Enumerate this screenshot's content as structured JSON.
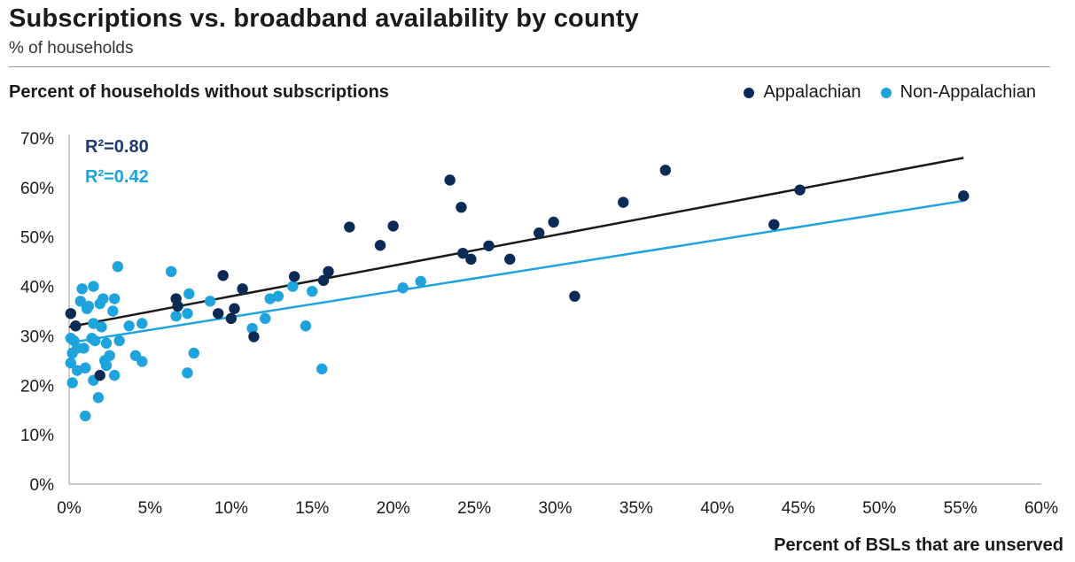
{
  "title": "Subscriptions vs. broadband availability by county",
  "subtitle": "% of households",
  "chart_data": {
    "type": "scatter",
    "title": "Subscriptions vs. broadband availability by county",
    "subtitle": "% of households",
    "ylabel": "Percent of households without subscriptions",
    "xlabel": "Percent of BSLs that are unserved",
    "xlim": [
      0,
      60
    ],
    "ylim": [
      0,
      70
    ],
    "x_ticks": [
      0,
      5,
      10,
      15,
      20,
      25,
      30,
      35,
      40,
      45,
      50,
      55,
      60
    ],
    "y_ticks": [
      0,
      10,
      20,
      30,
      40,
      50,
      60,
      70
    ],
    "x_tick_labels": [
      "0%",
      "5%",
      "10%",
      "15%",
      "20%",
      "25%",
      "30%",
      "35%",
      "40%",
      "45%",
      "50%",
      "55%",
      "60%"
    ],
    "y_tick_labels": [
      "0%",
      "10%",
      "20%",
      "30%",
      "40%",
      "50%",
      "60%",
      "70%"
    ],
    "grid": false,
    "legend_position": "top-right",
    "series": [
      {
        "name": "Appalachian",
        "color": "#0b2a55",
        "points": [
          [
            0.1,
            34.5
          ],
          [
            0.4,
            32
          ],
          [
            1.9,
            22
          ],
          [
            6.6,
            37.5
          ],
          [
            6.7,
            36
          ],
          [
            9.2,
            34.5
          ],
          [
            9.5,
            42.2
          ],
          [
            10.0,
            33.5
          ],
          [
            10.2,
            35.5
          ],
          [
            10.7,
            39.5
          ],
          [
            11.4,
            29.8
          ],
          [
            13.9,
            42
          ],
          [
            15.7,
            41.2
          ],
          [
            16.0,
            43
          ],
          [
            17.3,
            52
          ],
          [
            19.2,
            48.3
          ],
          [
            20.0,
            52.2
          ],
          [
            23.5,
            61.5
          ],
          [
            24.2,
            56
          ],
          [
            24.3,
            46.7
          ],
          [
            24.8,
            45.5
          ],
          [
            25.9,
            48.2
          ],
          [
            27.2,
            45.5
          ],
          [
            29.0,
            50.8
          ],
          [
            29.9,
            53
          ],
          [
            31.2,
            38
          ],
          [
            34.2,
            57
          ],
          [
            36.8,
            63.5
          ],
          [
            43.5,
            52.5
          ],
          [
            45.1,
            59.5
          ],
          [
            55.2,
            58.3
          ]
        ],
        "trendline": {
          "x": [
            0,
            55.2
          ],
          "y": [
            31.8,
            66
          ],
          "r2": "R²=0.80",
          "color": "#1a1a1a"
        }
      },
      {
        "name": "Non-Appalachian",
        "color": "#1ea3dc",
        "points": [
          [
            0.1,
            29.5
          ],
          [
            0.1,
            24.5
          ],
          [
            0.2,
            20.5
          ],
          [
            0.2,
            26.5
          ],
          [
            0.3,
            29
          ],
          [
            0.5,
            27.5
          ],
          [
            0.5,
            23
          ],
          [
            0.7,
            37
          ],
          [
            0.8,
            39.5
          ],
          [
            0.9,
            27.5
          ],
          [
            1.0,
            23.5
          ],
          [
            1.0,
            13.8
          ],
          [
            1.1,
            35.5
          ],
          [
            1.2,
            36
          ],
          [
            1.4,
            29.5
          ],
          [
            1.5,
            21
          ],
          [
            1.5,
            32.5
          ],
          [
            1.5,
            40
          ],
          [
            1.6,
            29
          ],
          [
            1.8,
            17.5
          ],
          [
            1.9,
            36.5
          ],
          [
            2.0,
            31.8
          ],
          [
            2.1,
            37.5
          ],
          [
            2.2,
            25
          ],
          [
            2.3,
            24
          ],
          [
            2.3,
            28.5
          ],
          [
            2.5,
            26
          ],
          [
            2.7,
            35
          ],
          [
            2.8,
            37.5
          ],
          [
            2.8,
            22
          ],
          [
            3.0,
            44
          ],
          [
            3.1,
            29
          ],
          [
            3.7,
            32
          ],
          [
            4.1,
            26
          ],
          [
            4.5,
            24.8
          ],
          [
            4.5,
            32.5
          ],
          [
            6.3,
            43
          ],
          [
            6.6,
            34
          ],
          [
            7.3,
            34.5
          ],
          [
            7.3,
            22.5
          ],
          [
            7.4,
            38.5
          ],
          [
            7.7,
            26.5
          ],
          [
            8.7,
            37
          ],
          [
            11.3,
            31.5
          ],
          [
            12.1,
            33.5
          ],
          [
            12.4,
            37.5
          ],
          [
            12.9,
            38
          ],
          [
            13.8,
            40
          ],
          [
            14.6,
            32
          ],
          [
            15.0,
            39
          ],
          [
            15.6,
            23.3
          ],
          [
            20.6,
            39.7
          ],
          [
            21.7,
            41
          ]
        ],
        "trendline": {
          "x": [
            0,
            55.2
          ],
          "y": [
            28.6,
            57.3
          ],
          "r2": "R²=0.42",
          "color": "#1ea3dc"
        }
      }
    ]
  }
}
